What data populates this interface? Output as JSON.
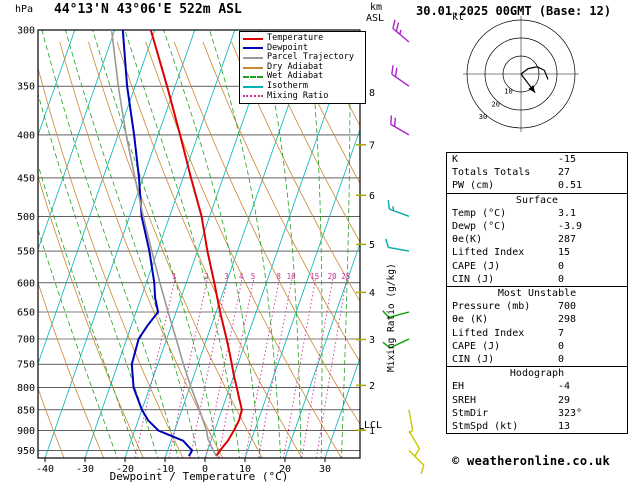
{
  "header": {
    "pressure_unit": "hPa",
    "title": "44°13'N 43°06'E 522m ASL",
    "km": "km",
    "asl": "ASL",
    "datetime": "30.01.2025 00GMT (Base: 12)",
    "kt": "kt"
  },
  "axes": {
    "xlabel": "Dewpoint / Temperature (°C)",
    "right_label": "Mixing Ratio (g/kg)",
    "lcl_label": "LCL",
    "lcl_pressure": 895
  },
  "legend": {
    "items": [
      {
        "label": "Temperature",
        "color": "#dd0000",
        "style": "solid"
      },
      {
        "label": "Dewpoint",
        "color": "#0000bb",
        "style": "solid"
      },
      {
        "label": "Parcel Trajectory",
        "color": "#999999",
        "style": "solid"
      },
      {
        "label": "Dry Adiabat",
        "color": "#cc8833",
        "style": "solid"
      },
      {
        "label": "Wet Adiabat",
        "color": "#22a022",
        "style": "dashed"
      },
      {
        "label": "Isotherm",
        "color": "#00b4b4",
        "style": "solid"
      },
      {
        "label": "Mixing Ratio",
        "color": "#cc3399",
        "style": "dotted"
      }
    ]
  },
  "chart_data": {
    "type": "line",
    "title": "Skew-T log-P sounding 44°13'N 43°06'E 522m ASL",
    "x_axis_label": "Dewpoint / Temperature (°C)",
    "y_axis_label": "Pressure (hPa)",
    "pressure_range_hPa": [
      300,
      970
    ],
    "pressure_ticks_hPa": [
      300,
      350,
      400,
      450,
      500,
      550,
      600,
      650,
      700,
      750,
      800,
      850,
      900,
      950
    ],
    "temp_ticks_c": [
      -40,
      -30,
      -20,
      -10,
      0,
      10,
      20,
      30
    ],
    "km_asl_ticks": [
      {
        "km": 1,
        "p": 899
      },
      {
        "km": 2,
        "p": 795
      },
      {
        "km": 3,
        "p": 701
      },
      {
        "km": 4,
        "p": 616
      },
      {
        "km": 5,
        "p": 540
      },
      {
        "km": 6,
        "p": 472
      },
      {
        "km": 7,
        "p": 411
      },
      {
        "km": 8,
        "p": 356
      }
    ],
    "mixing_ratio_gkg": [
      1,
      2,
      3,
      4,
      5,
      8,
      10,
      15,
      20,
      25
    ],
    "isotherms_c": {
      "min": -80,
      "max": 40,
      "step": 10
    },
    "dry_adiabats_K": {
      "min": 230,
      "max": 440,
      "step": 10
    },
    "wet_adiabats_c": {
      "min": -20,
      "max": 40,
      "step": 5
    },
    "colors": {
      "isotherm": "#00b4b4",
      "dry_adiabat": "#cc8833",
      "wet_adiabat": "#22a022",
      "mixing_ratio": "#cc3399",
      "gridline": "#000000"
    },
    "series": [
      {
        "name": "Temperature",
        "color": "#dd0000",
        "points_p_t": [
          [
            965,
            2.6
          ],
          [
            950,
            3.1
          ],
          [
            925,
            4.2
          ],
          [
            900,
            4.8
          ],
          [
            875,
            5.2
          ],
          [
            850,
            5.0
          ],
          [
            825,
            3.4
          ],
          [
            800,
            1.8
          ],
          [
            775,
            0.1
          ],
          [
            750,
            -1.5
          ],
          [
            725,
            -3.2
          ],
          [
            700,
            -5.0
          ],
          [
            650,
            -9.0
          ],
          [
            600,
            -13.0
          ],
          [
            550,
            -17.5
          ],
          [
            500,
            -22.0
          ],
          [
            450,
            -28.0
          ],
          [
            400,
            -34.5
          ],
          [
            350,
            -42.0
          ],
          [
            300,
            -51.0
          ]
        ]
      },
      {
        "name": "Dewpoint",
        "color": "#0000bb",
        "points_p_t": [
          [
            965,
            -4.2
          ],
          [
            950,
            -3.9
          ],
          [
            925,
            -7.0
          ],
          [
            900,
            -14.0
          ],
          [
            875,
            -17.5
          ],
          [
            850,
            -20.0
          ],
          [
            800,
            -24.0
          ],
          [
            750,
            -26.5
          ],
          [
            700,
            -27.0
          ],
          [
            675,
            -26.0
          ],
          [
            650,
            -24.5
          ],
          [
            625,
            -26.5
          ],
          [
            600,
            -28.0
          ],
          [
            550,
            -32.0
          ],
          [
            500,
            -37.0
          ],
          [
            450,
            -41.0
          ],
          [
            400,
            -46.0
          ],
          [
            350,
            -52.0
          ],
          [
            300,
            -58.0
          ]
        ]
      },
      {
        "name": "Parcel Trajectory",
        "color": "#999999",
        "points_p_t": [
          [
            965,
            2.6
          ],
          [
            940,
            0.6
          ],
          [
            920,
            -1.0
          ],
          [
            900,
            -2.0
          ],
          [
            875,
            -3.8
          ],
          [
            850,
            -5.6
          ],
          [
            800,
            -9.6
          ],
          [
            750,
            -13.6
          ],
          [
            700,
            -17.6
          ],
          [
            650,
            -22.0
          ],
          [
            600,
            -26.6
          ],
          [
            550,
            -31.4
          ],
          [
            500,
            -36.6
          ],
          [
            450,
            -42.0
          ],
          [
            400,
            -48.0
          ],
          [
            350,
            -54.2
          ],
          [
            300,
            -60.8
          ]
        ]
      }
    ]
  },
  "wind_barbs": [
    {
      "p": 310,
      "spd": 25,
      "dir": 310,
      "color": "#aa22cc"
    },
    {
      "p": 350,
      "spd": 20,
      "dir": 305,
      "color": "#aa22cc"
    },
    {
      "p": 400,
      "spd": 20,
      "dir": 300,
      "color": "#aa22cc"
    },
    {
      "p": 500,
      "spd": 15,
      "dir": 290,
      "color": "#00a8a8"
    },
    {
      "p": 550,
      "spd": 10,
      "dir": 280,
      "color": "#00a8a8"
    },
    {
      "p": 650,
      "spd": 10,
      "dir": 255,
      "color": "#00a000"
    },
    {
      "p": 700,
      "spd": 10,
      "dir": 245,
      "color": "#00a000"
    },
    {
      "p": 850,
      "spd": 5,
      "dir": 170,
      "color": "#c8c800"
    },
    {
      "p": 900,
      "spd": 10,
      "dir": 150,
      "color": "#c8c800"
    },
    {
      "p": 950,
      "spd": 10,
      "dir": 135,
      "color": "#c8c800"
    }
  ],
  "hodograph": {
    "rings_kt": [
      10,
      20,
      30
    ],
    "storm": {
      "dir": 323,
      "spd": 13
    },
    "trace_uv": [
      [
        0,
        0
      ],
      [
        4,
        3
      ],
      [
        9,
        4
      ],
      [
        13,
        2
      ],
      [
        15,
        -3
      ]
    ]
  },
  "stats": {
    "groups": [
      {
        "rows": [
          [
            "K",
            "-15"
          ],
          [
            "Totals Totals",
            "27"
          ],
          [
            "PW (cm)",
            "0.51"
          ]
        ]
      },
      {
        "title": "Surface",
        "rows": [
          [
            "Temp (°C)",
            "3.1"
          ],
          [
            "Dewp (°C)",
            "-3.9"
          ],
          [
            "θe(K)",
            "287"
          ],
          [
            "Lifted Index",
            "15"
          ],
          [
            "CAPE (J)",
            "0"
          ],
          [
            "CIN (J)",
            "0"
          ]
        ]
      },
      {
        "title": "Most Unstable",
        "rows": [
          [
            "Pressure (mb)",
            "700"
          ],
          [
            "θe (K)",
            "298"
          ],
          [
            "Lifted Index",
            "7"
          ],
          [
            "CAPE (J)",
            "0"
          ],
          [
            "CIN (J)",
            "0"
          ]
        ]
      },
      {
        "title": "Hodograph",
        "rows": [
          [
            "EH",
            "-4"
          ],
          [
            "SREH",
            "29"
          ],
          [
            "StmDir",
            "323°"
          ],
          [
            "StmSpd (kt)",
            "13"
          ]
        ]
      }
    ]
  },
  "footer": {
    "copyright": "© weatheronline.co.uk"
  }
}
